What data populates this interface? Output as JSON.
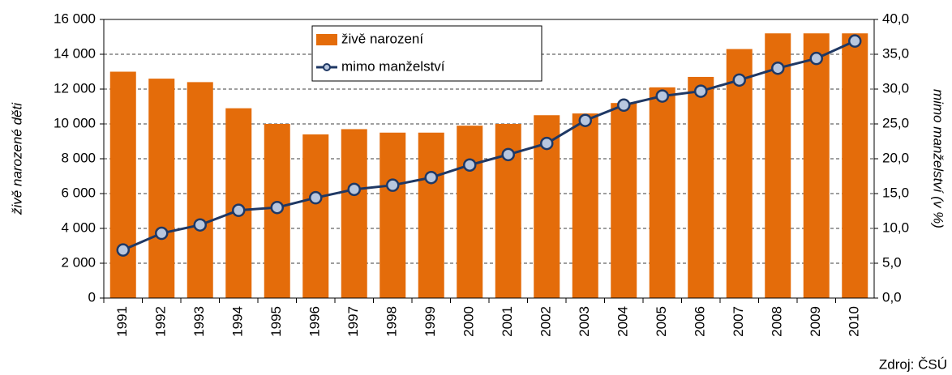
{
  "chart_data": {
    "type": "bar_line",
    "y_label": "živě narozené děti",
    "y2_label": "mimo manželství (v %)",
    "source": "Zdroj: ČSÚ",
    "categories": [
      "1991",
      "1992",
      "1993",
      "1994",
      "1995",
      "1996",
      "1997",
      "1998",
      "1999",
      "2000",
      "2001",
      "2002",
      "2003",
      "2004",
      "2005",
      "2006",
      "2007",
      "2008",
      "2009",
      "2010"
    ],
    "series": [
      {
        "name": "živě narození",
        "type": "bar",
        "color": "#e46c0a",
        "values": [
          13000,
          12600,
          12400,
          10900,
          10000,
          9400,
          9700,
          9500,
          9500,
          9900,
          10000,
          10500,
          10600,
          11200,
          12100,
          12700,
          14300,
          15200,
          15200,
          15200
        ]
      },
      {
        "name": "mimo manželství",
        "type": "line",
        "axis": "y2",
        "color": "#1f3864",
        "values": [
          6.9,
          9.3,
          10.5,
          12.6,
          13.0,
          14.4,
          15.6,
          16.2,
          17.3,
          19.1,
          20.6,
          22.2,
          25.5,
          27.7,
          29.0,
          29.7,
          31.3,
          33.0,
          34.4,
          36.9
        ]
      }
    ],
    "ylim": [
      0,
      16000
    ],
    "yticks": [
      0,
      {
        "value": 2000,
        "label": "2 000"
      },
      {
        "value": 4000,
        "label": "4 000"
      },
      {
        "value": 6000,
        "label": "6 000"
      },
      {
        "value": 8000,
        "label": "8 000"
      },
      {
        "value": 10000,
        "label": "10 000"
      },
      {
        "value": 12000,
        "label": "12 000"
      },
      {
        "value": 14000,
        "label": "14 000"
      },
      {
        "value": 16000,
        "label": "16 000"
      }
    ],
    "y2lim": [
      0,
      40
    ],
    "y2ticks": [
      {
        "value": 0,
        "label": "0,0"
      },
      {
        "value": 5,
        "label": "5,0"
      },
      {
        "value": 10,
        "label": "10,0"
      },
      {
        "value": 15,
        "label": "15,0"
      },
      {
        "value": 20,
        "label": "20,0"
      },
      {
        "value": 25,
        "label": "25,0"
      },
      {
        "value": 30,
        "label": "30,0"
      },
      {
        "value": 35,
        "label": "35,0"
      },
      {
        "value": 40,
        "label": "40,0"
      }
    ],
    "grid": true,
    "legend": "top"
  }
}
